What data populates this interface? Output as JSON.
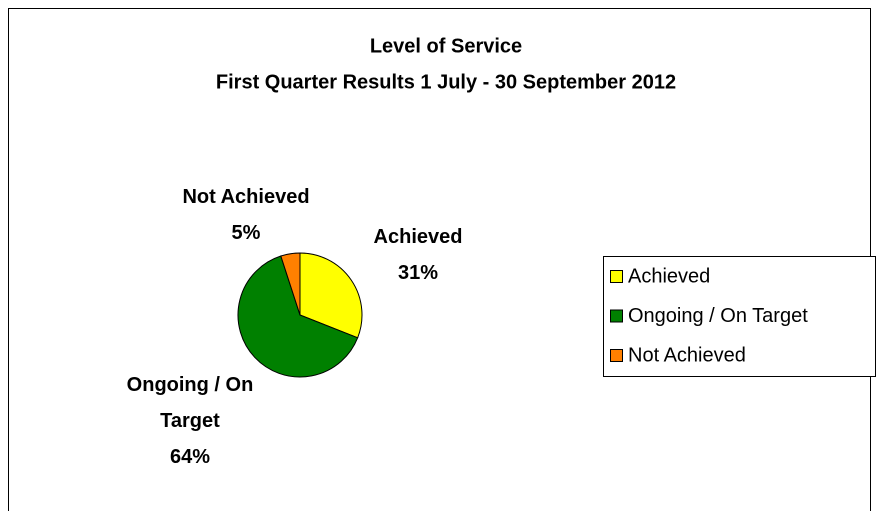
{
  "chart_data": {
    "type": "pie",
    "title": "Level of Service",
    "subtitle": "First Quarter Results 1 July - 30 September 2012",
    "categories": [
      "Achieved",
      "Ongoing / On Target",
      "Not Achieved"
    ],
    "values": [
      31,
      64,
      5
    ],
    "value_labels": [
      "31%",
      "64%",
      "5%"
    ],
    "colors": [
      "#ffff00",
      "#008000",
      "#ff8000"
    ],
    "legend": "right"
  }
}
